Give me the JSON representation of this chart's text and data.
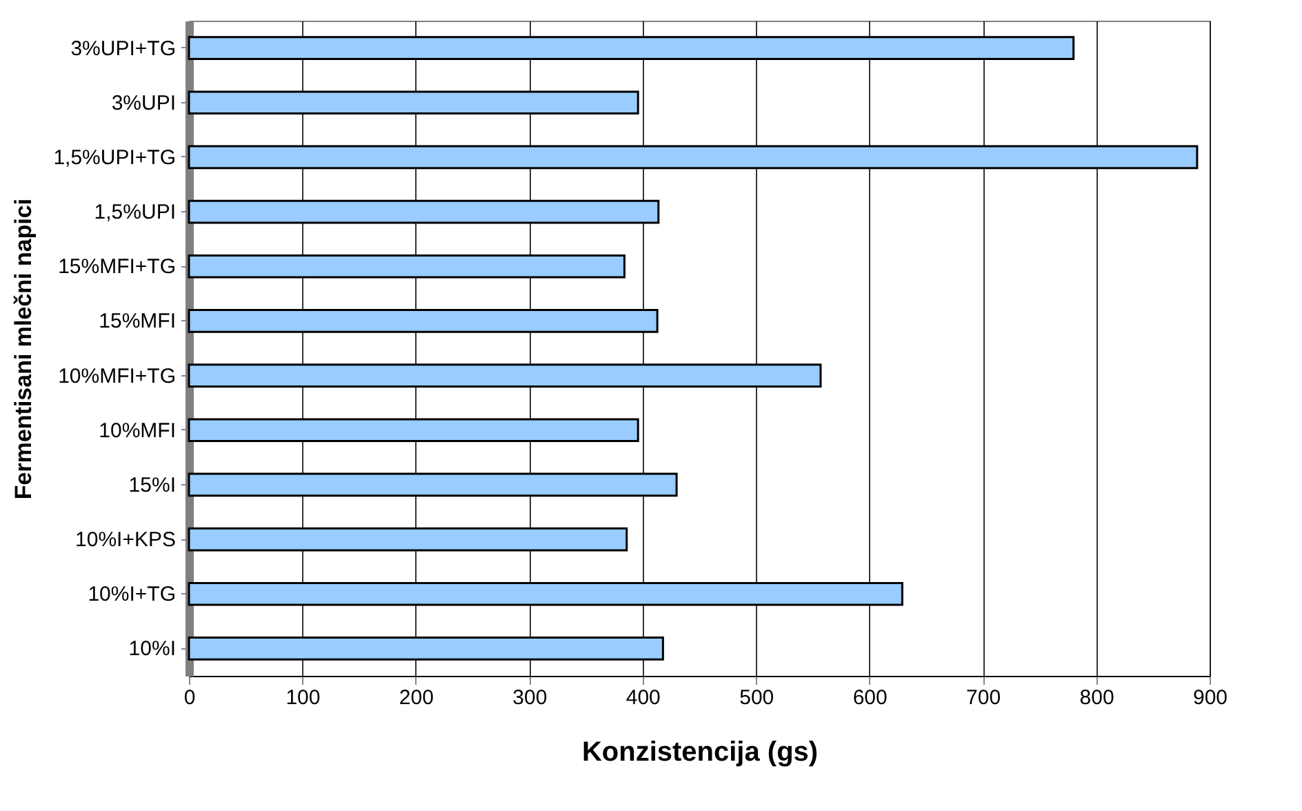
{
  "chart_data": {
    "type": "bar",
    "orientation": "horizontal",
    "xlabel": "Konzistencija (gs)",
    "ylabel": "Fermentisani mlečni napici",
    "categories": [
      "3%UPI+TG",
      "3%UPI",
      "1,5%UPI+TG",
      "1,5%UPI",
      "15%MFI+TG",
      "15%MFI",
      "10%MFI+TG",
      "10%MFI",
      "15%I",
      "10%I+KPS",
      "10%I+TG",
      "10%I"
    ],
    "values": [
      780,
      396,
      889,
      414,
      384,
      413,
      557,
      396,
      430,
      386,
      629,
      418
    ],
    "color": "#99ccff",
    "xlim": [
      0,
      900
    ],
    "xticks": [
      0,
      100,
      200,
      300,
      400,
      500,
      600,
      700,
      800,
      900
    ],
    "grid": "x"
  }
}
